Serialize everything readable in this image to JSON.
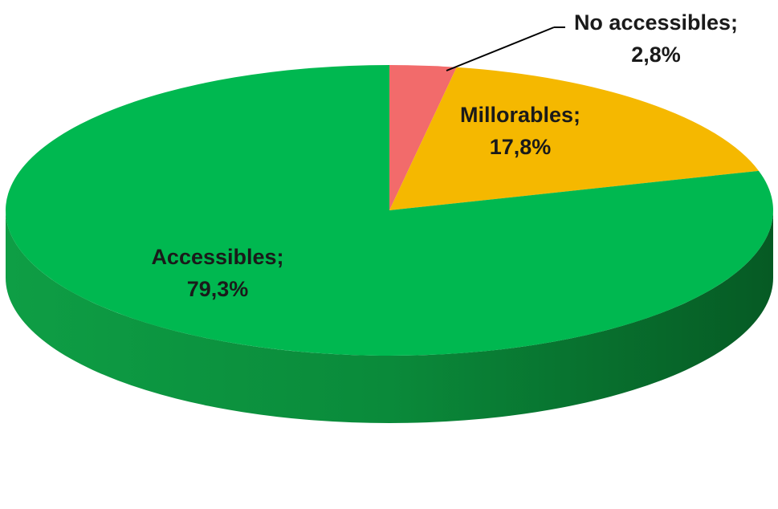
{
  "chart_data": {
    "type": "pie",
    "style": "3d",
    "slices": [
      {
        "label": "No accessibles",
        "value": 2.8,
        "value_text": "2,8%",
        "color": "#F26B6B"
      },
      {
        "label": "Millorables",
        "value": 17.8,
        "value_text": "17,8%",
        "color": "#F5B800"
      },
      {
        "label": "Accessibles",
        "value": 79.3,
        "value_text": "79,3%",
        "color": "#00B850"
      }
    ],
    "data_labels": [
      {
        "name": "No accessibles;",
        "value": "2,8%"
      },
      {
        "name": "Millorables;",
        "value": "17,8%"
      },
      {
        "name": "Accessibles;",
        "value": "79,3%"
      }
    ],
    "legend": "none"
  }
}
